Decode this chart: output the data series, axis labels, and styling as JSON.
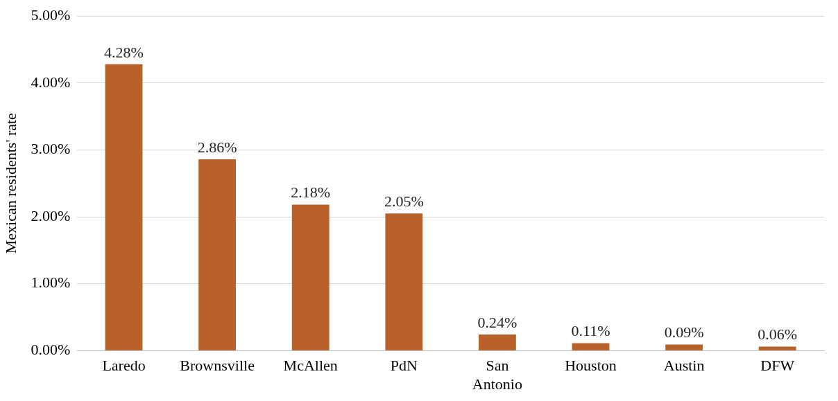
{
  "chart_data": {
    "type": "bar",
    "ylabel": "Mexican residents' rate",
    "categories": [
      "Laredo",
      "Brownsville",
      "McAllen",
      "PdN",
      "San Antonio",
      "Houston",
      "Austin",
      "DFW"
    ],
    "values": [
      4.28,
      2.86,
      2.18,
      2.05,
      0.24,
      0.11,
      0.09,
      0.06
    ],
    "value_labels": [
      "4.28%",
      "2.86%",
      "2.18%",
      "2.05%",
      "0.24%",
      "0.11%",
      "0.09%",
      "0.06%"
    ],
    "color": "#b8622a",
    "ylim": [
      0,
      5
    ],
    "yticks": [
      {
        "value": 0,
        "label": "0.00%"
      },
      {
        "value": 1,
        "label": "1.00%"
      },
      {
        "value": 2,
        "label": "2.00%"
      },
      {
        "value": 3,
        "label": "3.00%"
      },
      {
        "value": 4,
        "label": "4.00%"
      },
      {
        "value": 5,
        "label": "5.00%"
      }
    ],
    "grid": "y",
    "legend": false
  }
}
